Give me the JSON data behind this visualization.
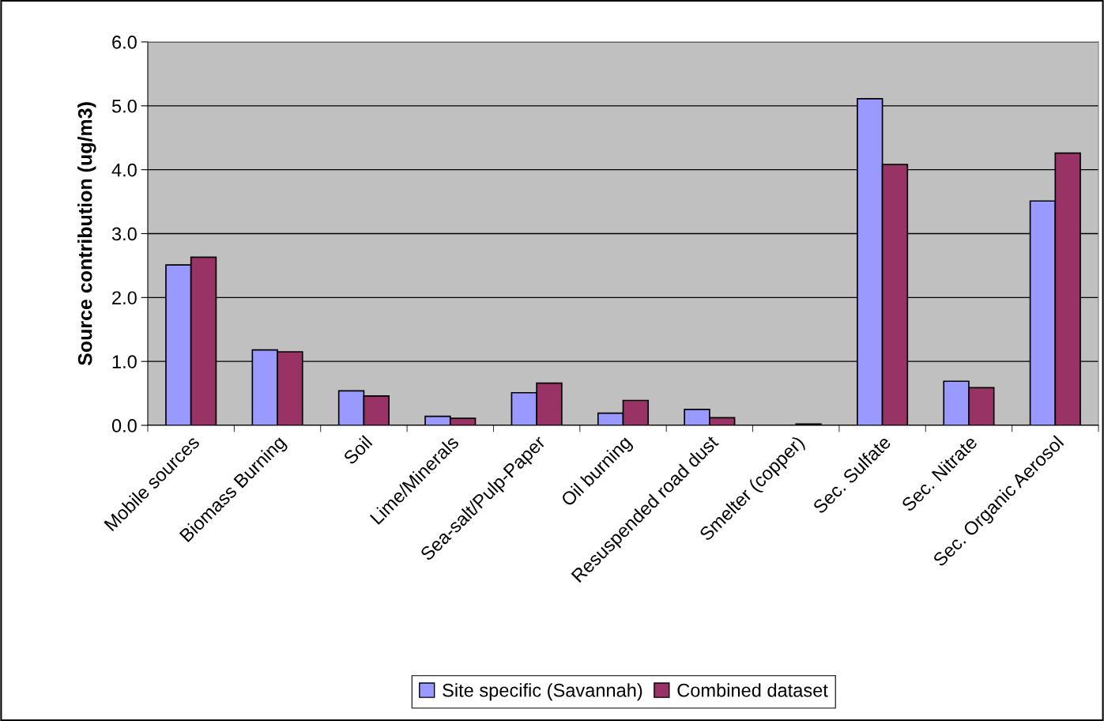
{
  "chart_data": {
    "type": "bar",
    "ylabel": "Source contribution (ug/m3)",
    "categories": [
      "Mobile sources",
      "Biomass Burning",
      "Soil",
      "Lime/Minerals",
      "Sea-salt/Pulp-Paper",
      "Oil burning",
      "Resuspended road dust",
      "Smelter (copper)",
      "Sec. Sulfate",
      "Sec. Nitrate",
      "Sec. Organic Aerosol"
    ],
    "series": [
      {
        "name": "Site specific (Savannah)",
        "color": "#9999ff",
        "values": [
          2.51,
          1.18,
          0.54,
          0.14,
          0.51,
          0.19,
          0.25,
          null,
          5.11,
          0.69,
          3.51
        ]
      },
      {
        "name": "Combined dataset",
        "color": "#993366",
        "values": [
          2.63,
          1.15,
          0.46,
          0.11,
          0.66,
          0.39,
          0.12,
          0.02,
          4.08,
          0.59,
          4.26
        ]
      }
    ],
    "ylim": [
      0,
      6
    ],
    "yticks": [
      {
        "value": 0,
        "label": "0.0"
      },
      {
        "value": 1,
        "label": "1.0"
      },
      {
        "value": 2,
        "label": "2.0"
      },
      {
        "value": 3,
        "label": "3.0"
      },
      {
        "value": 4,
        "label": "4.0"
      },
      {
        "value": 5,
        "label": "5.0"
      },
      {
        "value": 6,
        "label": "6.0"
      }
    ],
    "grid": "y",
    "legend": "bottom"
  }
}
